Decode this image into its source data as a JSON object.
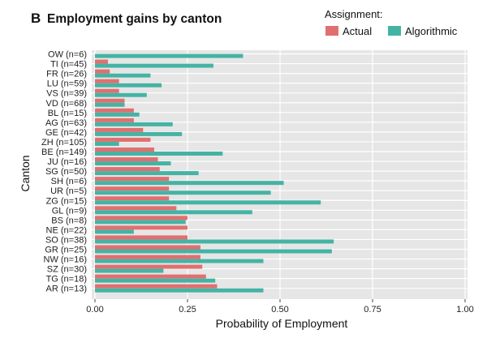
{
  "panel_letter": "B",
  "chart_data": {
    "type": "bar",
    "orientation": "horizontal",
    "title": "Employment gains by canton",
    "xlabel": "Probability of Employment",
    "ylabel": "Canton",
    "xlim": [
      0,
      1
    ],
    "xticks": [
      "0.00",
      "0.25",
      "0.50",
      "0.75",
      "1.00"
    ],
    "legend": {
      "title": "Assignment:",
      "placement": "top-right"
    },
    "categories": [
      "OW (n=6)",
      "TI (n=45)",
      "FR (n=26)",
      "LU (n=59)",
      "VS (n=39)",
      "VD (n=68)",
      "BL (n=15)",
      "AG (n=63)",
      "GE (n=42)",
      "ZH (n=105)",
      "BE (n=149)",
      "JU (n=16)",
      "SG (n=50)",
      "SH (n=6)",
      "UR (n=5)",
      "ZG (n=15)",
      "GL (n=9)",
      "BS (n=8)",
      "NE (n=22)",
      "SO (n=38)",
      "GR (n=25)",
      "NW (n=16)",
      "SZ (n=30)",
      "TG (n=18)",
      "AR (n=13)"
    ],
    "series": [
      {
        "name": "Actual",
        "color": "#e07070",
        "values": [
          0.0,
          0.035,
          0.04,
          0.065,
          0.065,
          0.08,
          0.105,
          0.105,
          0.13,
          0.15,
          0.16,
          0.17,
          0.175,
          0.2,
          0.2,
          0.2,
          0.22,
          0.25,
          0.25,
          0.25,
          0.285,
          0.285,
          0.29,
          0.3,
          0.33
        ]
      },
      {
        "name": "Algorithmic",
        "color": "#45b3a4",
        "values": [
          0.4,
          0.32,
          0.15,
          0.18,
          0.14,
          0.08,
          0.12,
          0.21,
          0.235,
          0.065,
          0.345,
          0.205,
          0.28,
          0.51,
          0.475,
          0.61,
          0.425,
          0.245,
          0.105,
          0.645,
          0.64,
          0.455,
          0.185,
          0.325,
          0.455
        ]
      }
    ],
    "grid": true
  }
}
